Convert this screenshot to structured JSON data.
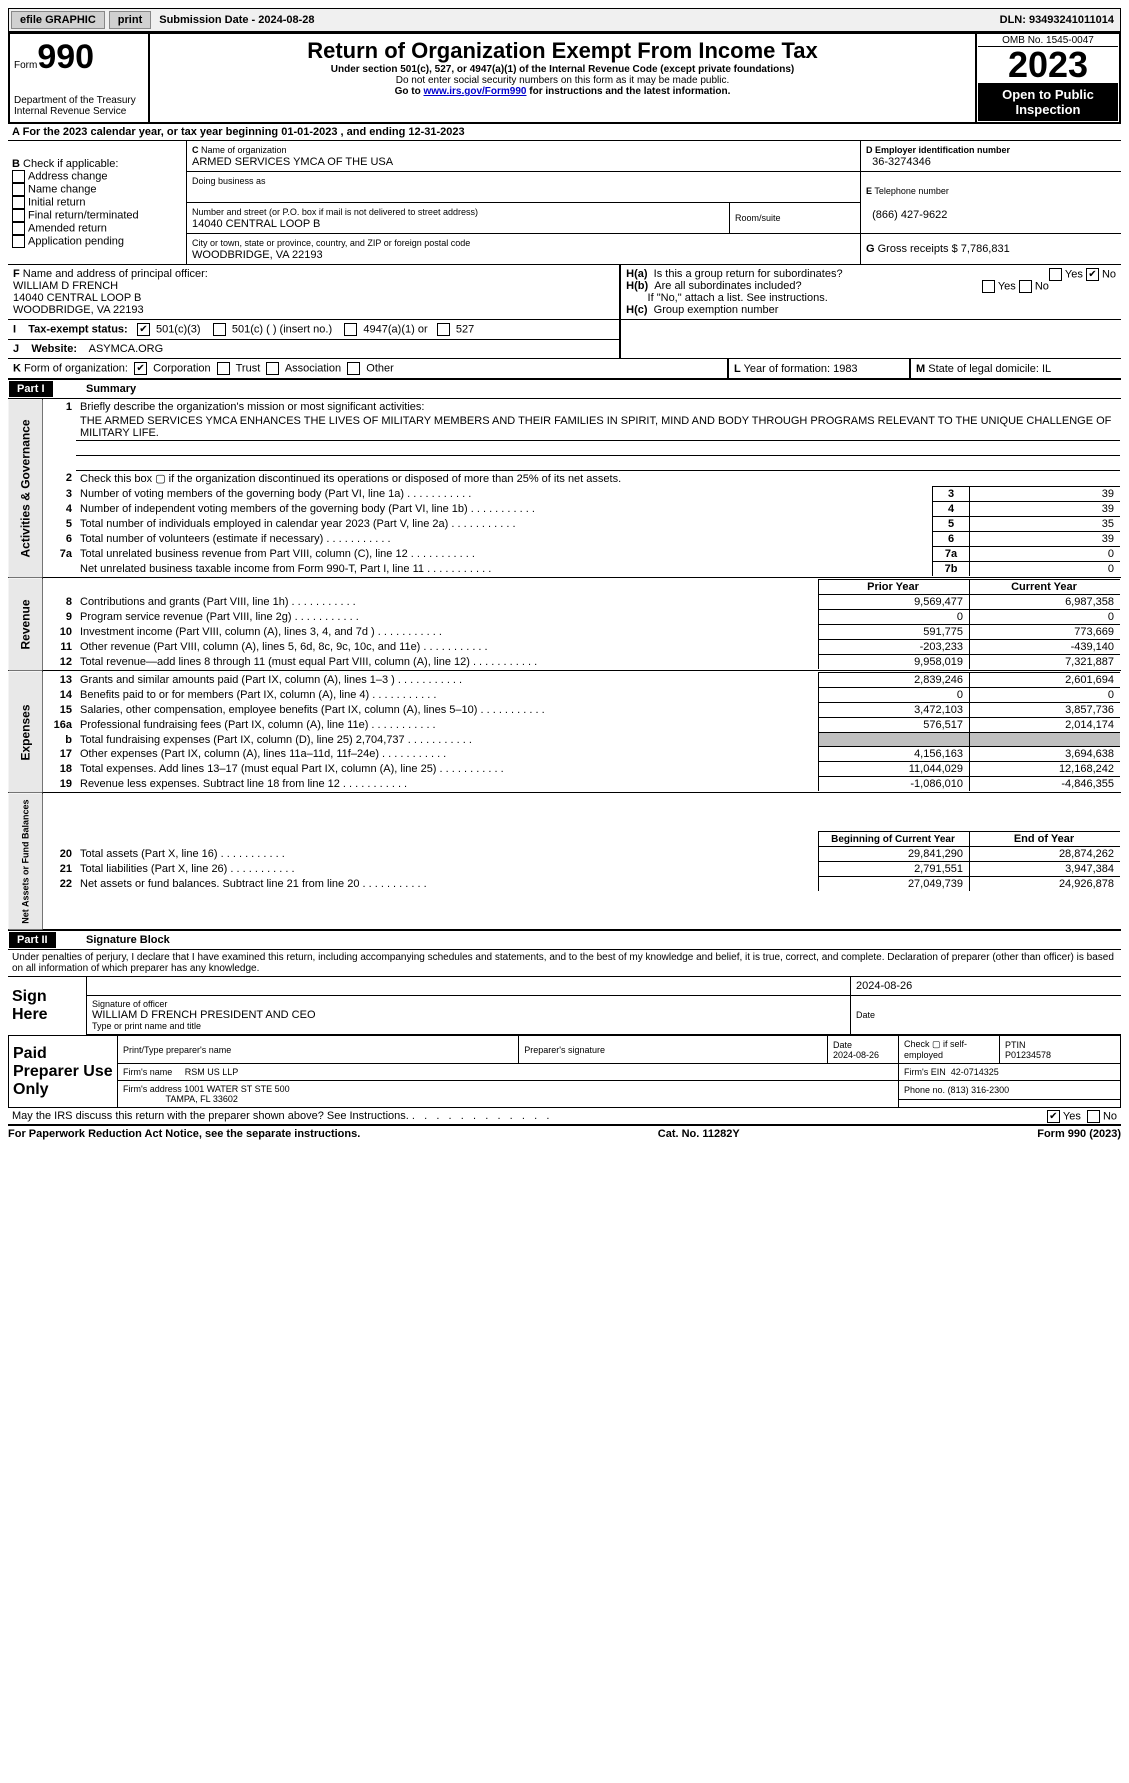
{
  "topbar": {
    "efile": "efile GRAPHIC",
    "print": "print",
    "sub_date_label": "Submission Date - 2024-08-28",
    "dln": "DLN: 93493241011014"
  },
  "header": {
    "form_label": "Form",
    "form_no": "990",
    "dept": "Department of the Treasury\nInternal Revenue Service",
    "title": "Return of Organization Exempt From Income Tax",
    "sub1": "Under section 501(c), 527, or 4947(a)(1) of the Internal Revenue Code (except private foundations)",
    "sub2": "Do not enter social security numbers on this form as it may be made public.",
    "sub3_pre": "Go to ",
    "sub3_link": "www.irs.gov/Form990",
    "sub3_post": " for instructions and the latest information.",
    "omb": "OMB No. 1545-0047",
    "year": "2023",
    "open": "Open to Public Inspection"
  },
  "A": {
    "text_pre": "For the 2023 calendar year, or tax year beginning ",
    "begin": "01-01-2023",
    "mid": " , and ending ",
    "end": "12-31-2023"
  },
  "B": {
    "label": "Check if applicable:",
    "items": [
      "Address change",
      "Name change",
      "Initial return",
      "Final return/terminated",
      "Amended return",
      "Application pending"
    ]
  },
  "C": {
    "name_label": "Name of organization",
    "name": "ARMED SERVICES YMCA OF THE USA",
    "dba_label": "Doing business as",
    "addr_label": "Number and street (or P.O. box if mail is not delivered to street address)",
    "addr": "14040 CENTRAL LOOP B",
    "room_label": "Room/suite",
    "city_label": "City or town, state or province, country, and ZIP or foreign postal code",
    "city": "WOODBRIDGE, VA  22193"
  },
  "D": {
    "label": "Employer identification number",
    "value": "36-3274346"
  },
  "E": {
    "label": "Telephone number",
    "value": "(866) 427-9622"
  },
  "G": {
    "label": "Gross receipts $",
    "value": "7,786,831"
  },
  "F": {
    "label": "Name and address of principal officer:",
    "name": "WILLIAM D FRENCH",
    "addr1": "14040 CENTRAL LOOP B",
    "addr2": "WOODBRIDGE, VA  22193"
  },
  "H": {
    "a": "Is this a group return for subordinates?",
    "b": "Are all subordinates included?",
    "b_note": "If \"No,\" attach a list. See instructions.",
    "c": "Group exemption number"
  },
  "I": {
    "label": "Tax-exempt status:",
    "opts": [
      "501(c)(3)",
      "501(c) (  ) (insert no.)",
      "4947(a)(1) or",
      "527"
    ]
  },
  "J": {
    "label": "Website:",
    "value": "ASYMCA.ORG"
  },
  "K": {
    "label": "Form of organization:",
    "opts": [
      "Corporation",
      "Trust",
      "Association",
      "Other"
    ]
  },
  "L": {
    "label": "Year of formation:",
    "value": "1983"
  },
  "M": {
    "label": "State of legal domicile:",
    "value": "IL"
  },
  "part1": {
    "title": "Part I",
    "name": "Summary",
    "l1": "Briefly describe the organization's mission or most significant activities:",
    "mission": "THE ARMED SERVICES YMCA ENHANCES THE LIVES OF MILITARY MEMBERS AND THEIR FAMILIES IN SPIRIT, MIND AND BODY THROUGH PROGRAMS RELEVANT TO THE UNIQUE CHALLENGE OF MILITARY LIFE.",
    "l2": "Check this box  ▢  if the organization discontinued its operations or disposed of more than 25% of its net assets.",
    "rows_top": [
      {
        "n": "3",
        "d": "Number of voting members of the governing body (Part VI, line 1a)",
        "b": "3",
        "v": "39"
      },
      {
        "n": "4",
        "d": "Number of independent voting members of the governing body (Part VI, line 1b)",
        "b": "4",
        "v": "39"
      },
      {
        "n": "5",
        "d": "Total number of individuals employed in calendar year 2023 (Part V, line 2a)",
        "b": "5",
        "v": "35"
      },
      {
        "n": "6",
        "d": "Total number of volunteers (estimate if necessary)",
        "b": "6",
        "v": "39"
      },
      {
        "n": "7a",
        "d": "Total unrelated business revenue from Part VIII, column (C), line 12",
        "b": "7a",
        "v": "0"
      },
      {
        "n": "",
        "d": "Net unrelated business taxable income from Form 990-T, Part I, line 11",
        "b": "7b",
        "v": "0"
      }
    ],
    "prior_label": "Prior Year",
    "current_label": "Current Year",
    "revenue": [
      {
        "n": "8",
        "d": "Contributions and grants (Part VIII, line 1h)",
        "p": "9,569,477",
        "c": "6,987,358"
      },
      {
        "n": "9",
        "d": "Program service revenue (Part VIII, line 2g)",
        "p": "0",
        "c": "0"
      },
      {
        "n": "10",
        "d": "Investment income (Part VIII, column (A), lines 3, 4, and 7d )",
        "p": "591,775",
        "c": "773,669"
      },
      {
        "n": "11",
        "d": "Other revenue (Part VIII, column (A), lines 5, 6d, 8c, 9c, 10c, and 11e)",
        "p": "-203,233",
        "c": "-439,140"
      },
      {
        "n": "12",
        "d": "Total revenue—add lines 8 through 11 (must equal Part VIII, column (A), line 12)",
        "p": "9,958,019",
        "c": "7,321,887"
      }
    ],
    "expenses": [
      {
        "n": "13",
        "d": "Grants and similar amounts paid (Part IX, column (A), lines 1–3 )",
        "p": "2,839,246",
        "c": "2,601,694"
      },
      {
        "n": "14",
        "d": "Benefits paid to or for members (Part IX, column (A), line 4)",
        "p": "0",
        "c": "0"
      },
      {
        "n": "15",
        "d": "Salaries, other compensation, employee benefits (Part IX, column (A), lines 5–10)",
        "p": "3,472,103",
        "c": "3,857,736"
      },
      {
        "n": "16a",
        "d": "Professional fundraising fees (Part IX, column (A), line 11e)",
        "p": "576,517",
        "c": "2,014,174"
      },
      {
        "n": "b",
        "d": "Total fundraising expenses (Part IX, column (D), line 25) 2,704,737",
        "p": "GRAY",
        "c": "GRAY"
      },
      {
        "n": "17",
        "d": "Other expenses (Part IX, column (A), lines 11a–11d, 11f–24e)",
        "p": "4,156,163",
        "c": "3,694,638"
      },
      {
        "n": "18",
        "d": "Total expenses. Add lines 13–17 (must equal Part IX, column (A), line 25)",
        "p": "11,044,029",
        "c": "12,168,242"
      },
      {
        "n": "19",
        "d": "Revenue less expenses. Subtract line 18 from line 12",
        "p": "-1,086,010",
        "c": "-4,846,355"
      }
    ],
    "begin_label": "Beginning of Current Year",
    "end_label": "End of Year",
    "assets": [
      {
        "n": "20",
        "d": "Total assets (Part X, line 16)",
        "p": "29,841,290",
        "c": "28,874,262"
      },
      {
        "n": "21",
        "d": "Total liabilities (Part X, line 26)",
        "p": "2,791,551",
        "c": "3,947,384"
      },
      {
        "n": "22",
        "d": "Net assets or fund balances. Subtract line 21 from line 20",
        "p": "27,049,739",
        "c": "24,926,878"
      }
    ],
    "vlabels": {
      "gov": "Activities & Governance",
      "rev": "Revenue",
      "exp": "Expenses",
      "net": "Net Assets or Fund Balances"
    }
  },
  "part2": {
    "title": "Part II",
    "name": "Signature Block",
    "decl": "Under penalties of perjury, I declare that I have examined this return, including accompanying schedules and statements, and to the best of my knowledge and belief, it is true, correct, and complete. Declaration of preparer (other than officer) is based on all information of which preparer has any knowledge.",
    "sign_label": "Sign Here",
    "sig_officer": "Signature of officer",
    "officer": "WILLIAM D FRENCH  PRESIDENT AND CEO",
    "type_label": "Type or print name and title",
    "date_label": "Date",
    "date": "2024-08-26",
    "paid_label": "Paid Preparer Use Only",
    "prep_name_label": "Print/Type preparer's name",
    "prep_sig_label": "Preparer's signature",
    "prep_date": "2024-08-26",
    "check_self": "Check ▢ if self-employed",
    "ptin_label": "PTIN",
    "ptin": "P01234578",
    "firm_name_label": "Firm's name",
    "firm_name": "RSM US LLP",
    "firm_ein_label": "Firm's EIN",
    "firm_ein": "42-0714325",
    "firm_addr_label": "Firm's address",
    "firm_addr1": "1001 WATER ST STE 500",
    "firm_addr2": "TAMPA, FL  33602",
    "phone_label": "Phone no.",
    "phone": "(813) 316-2300",
    "may_irs": "May the IRS discuss this return with the preparer shown above? See Instructions."
  },
  "footer": {
    "left": "For Paperwork Reduction Act Notice, see the separate instructions.",
    "mid": "Cat. No. 11282Y",
    "right": "Form 990 (2023)"
  }
}
